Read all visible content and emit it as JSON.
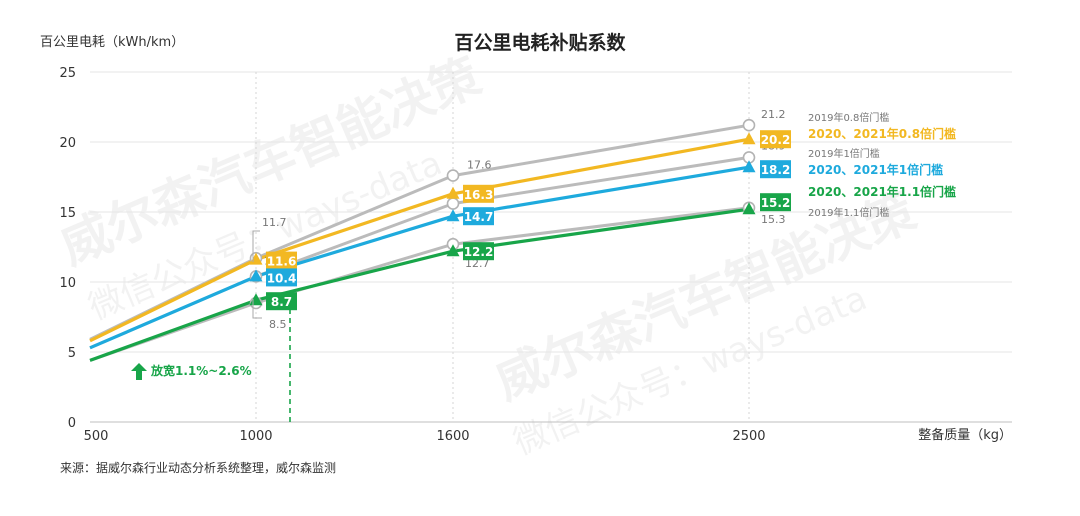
{
  "chart_data": {
    "type": "line",
    "title": "百公里电耗补贴系数",
    "ylabel": "百公里电耗（kWh/km）",
    "xlabel": "整备质量（kg）",
    "source": "来源：据威尔森行业动态分析系统整理，威尔森监测",
    "annotation": "放宽1.1%~2.6%",
    "watermarks": [
      "威尔森汽车智能决策",
      "微信公众号：ways-data"
    ],
    "ylim": [
      0,
      25
    ],
    "yticks": [
      "0",
      "5",
      "10",
      "15",
      "20",
      "25"
    ],
    "x_ticks": [
      "500",
      "1000",
      "1600",
      "2500"
    ],
    "x": [
      500,
      1000,
      1600,
      2500
    ],
    "grid": true,
    "legend_placement": "right",
    "series": [
      {
        "name": "2019年0.8倍门槛",
        "color": "#bbbbbb",
        "marker": "circle",
        "values": [
          5.9,
          11.7,
          17.6,
          21.2
        ],
        "labels": [
          "",
          "11.7",
          "17.6",
          "21.2"
        ],
        "legend_bold": false
      },
      {
        "name": "2020、2021年0.8倍门槛",
        "color": "#f2b822",
        "marker": "triangle",
        "values": [
          5.8,
          11.6,
          16.3,
          20.2
        ],
        "labels": [
          "",
          "11.6",
          "16.3",
          "20.2"
        ],
        "legend_bold": true
      },
      {
        "name": "2019年1倍门槛",
        "color": "#bbbbbb",
        "marker": "circle",
        "values": [
          5.3,
          10.4,
          15.6,
          18.9
        ],
        "labels": [
          "",
          "10.4",
          "15.6",
          "18.9"
        ],
        "legend_bold": false
      },
      {
        "name": "2020、2021年1倍门槛",
        "color": "#1eaadd",
        "marker": "triangle",
        "values": [
          5.3,
          10.4,
          14.7,
          18.2
        ],
        "labels": [
          "",
          "10.4",
          "14.7",
          "18.2"
        ],
        "legend_bold": true
      },
      {
        "name": "2020、2021年1.1倍门槛",
        "color": "#18a549",
        "marker": "triangle",
        "values": [
          4.4,
          8.7,
          12.2,
          15.2
        ],
        "labels": [
          "",
          "8.7",
          "12.2",
          "15.2"
        ],
        "legend_bold": true
      },
      {
        "name": "2019年1.1倍门槛",
        "color": "#bbbbbb",
        "marker": "circle",
        "values": [
          4.4,
          8.5,
          12.7,
          15.3
        ],
        "labels": [
          "",
          "8.5",
          "12.7",
          "15.3"
        ],
        "legend_bold": false
      }
    ],
    "colors": {
      "arrow": "#18a549",
      "grid": "#e6e6e6"
    }
  }
}
